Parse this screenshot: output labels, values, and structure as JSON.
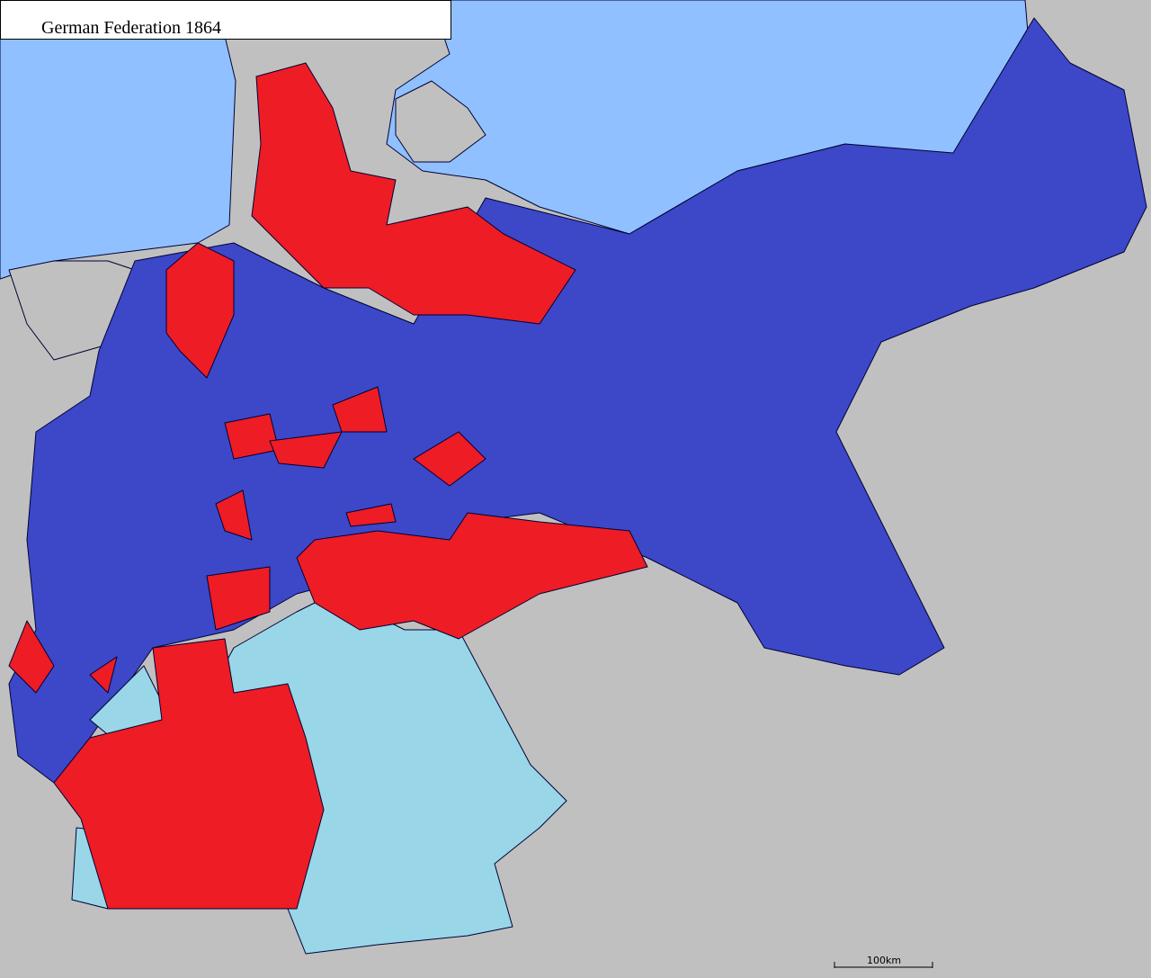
{
  "title": "German Federation 1864",
  "scale_bar": {
    "label": "100km"
  }
}
